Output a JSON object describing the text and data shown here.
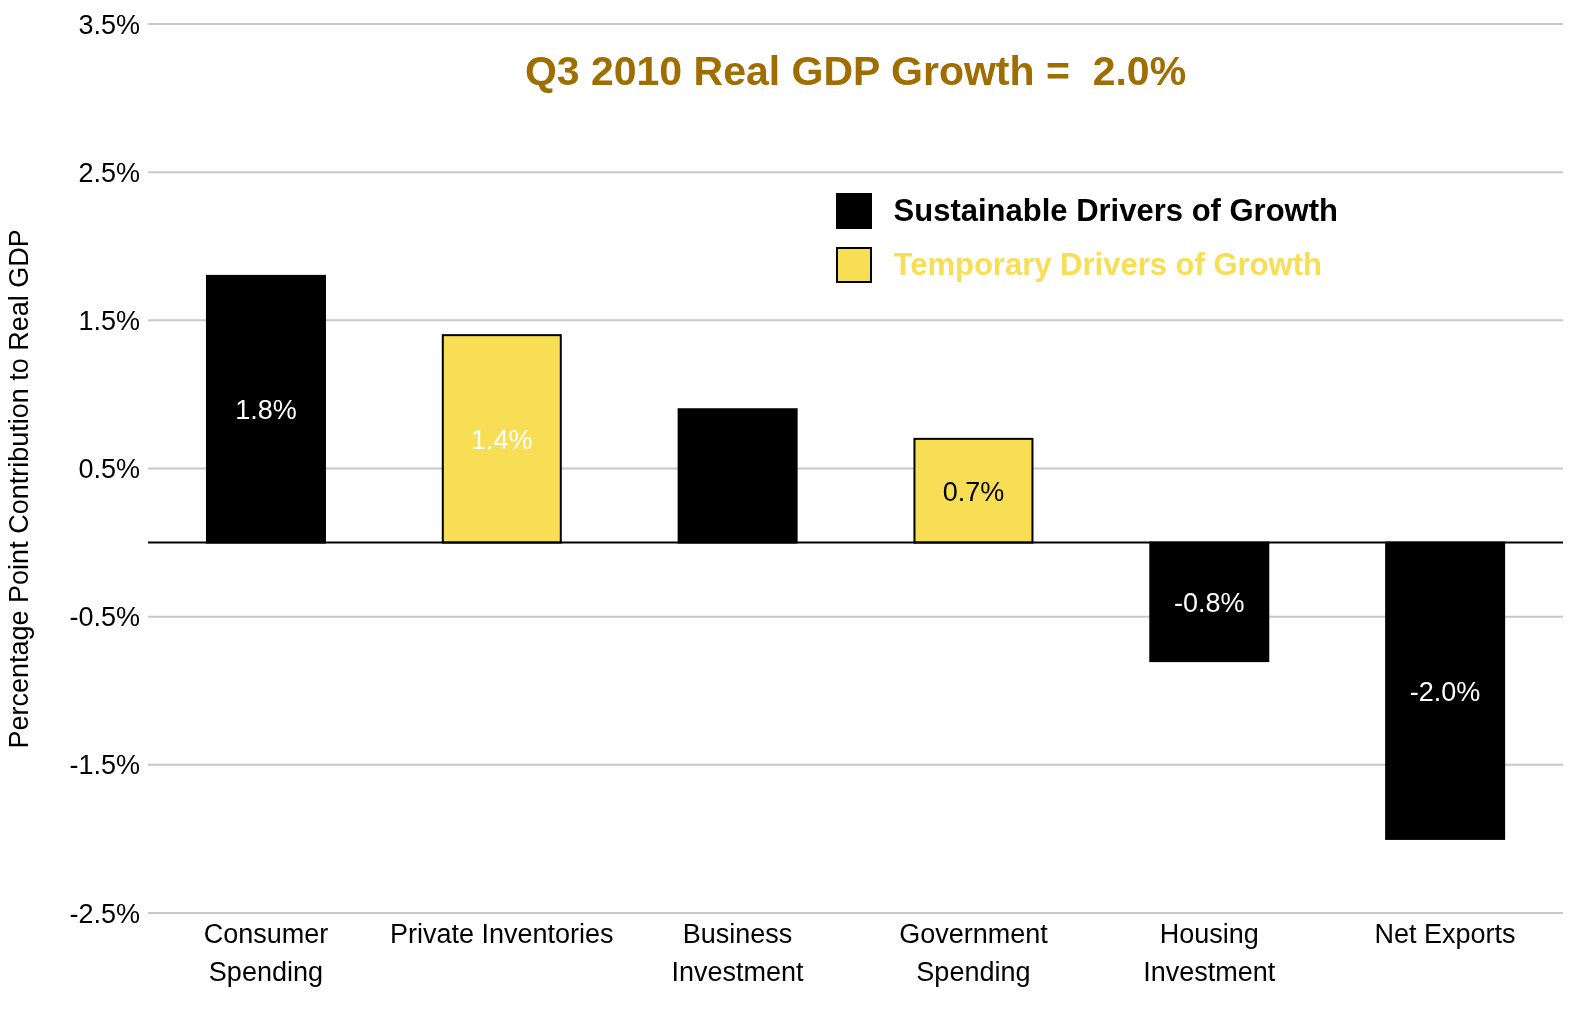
{
  "chart_data": {
    "type": "bar",
    "title": "Q3 2010 Real GDP Growth =  2.0%",
    "ylabel": "Percentage Point Contribution to Real GDP",
    "categories": [
      [
        "Consumer",
        "Spending"
      ],
      [
        "Private Inventories"
      ],
      [
        "Business",
        "Investment"
      ],
      [
        "Government",
        "Spending"
      ],
      [
        "Housing",
        "Investment"
      ],
      [
        "Net Exports"
      ]
    ],
    "stacked": true,
    "series": [
      {
        "name": "Sustainable Drivers of Growth",
        "color": "#000000",
        "values": [
          1.8,
          null,
          0.9,
          null,
          -0.8,
          -2.0
        ],
        "value_labels": [
          "1.8%",
          null,
          null,
          null,
          "-0.8%",
          "-2.0%"
        ]
      },
      {
        "name": "Temporary Drivers of Growth",
        "color": "#f8de55",
        "values": [
          null,
          1.4,
          null,
          0.7,
          null,
          null
        ],
        "value_labels": [
          null,
          "1.4%",
          null,
          "0.7%",
          null,
          null
        ]
      }
    ],
    "ylim": [
      -2.5,
      3.5
    ],
    "yticks": [
      {
        "value": 3.5,
        "label": "3.5%"
      },
      {
        "value": 2.5,
        "label": "2.5%"
      },
      {
        "value": 1.5,
        "label": "1.5%"
      },
      {
        "value": 0.5,
        "label": "0.5%"
      },
      {
        "value": -0.5,
        "label": "-0.5%"
      },
      {
        "value": -1.5,
        "label": "-1.5%"
      },
      {
        "value": -2.5,
        "label": "-2.5%"
      }
    ],
    "grid": "y",
    "legend": "top right"
  }
}
